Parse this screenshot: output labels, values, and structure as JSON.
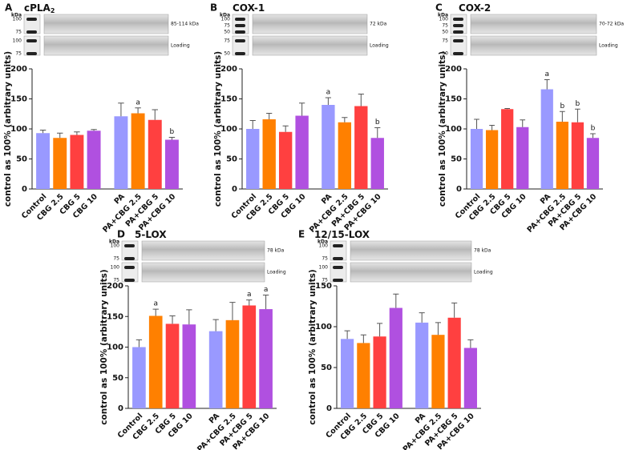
{
  "chart_data": [
    {
      "type": "bar",
      "panel": "A",
      "title": "cPLA",
      "title_subscript": "2",
      "blot": {
        "kda": "kDa",
        "ladder_top": [
          "100",
          "75"
        ],
        "ladder_bottom": [
          "100",
          "75"
        ],
        "band_label": "85-114 kDa",
        "loading_label": "Loading"
      },
      "y_label": "control as 100% (arbitrary units)",
      "categories": [
        "Control",
        "CBG 2.5",
        "CBG 5",
        "CBG 10",
        "PA",
        "PA+CBG 2.5",
        "PA+CBG 5",
        "PA+CBG 10"
      ],
      "colors": [
        "#9999ff",
        "#ff8000",
        "#ff4040",
        "#b050e0",
        "#9999ff",
        "#ff8000",
        "#ff4040",
        "#b050e0"
      ],
      "values": [
        93,
        85,
        90,
        97,
        121,
        126,
        115,
        82
      ],
      "errors": [
        5,
        8,
        5,
        2,
        22,
        9,
        17,
        4
      ],
      "annotations": [
        null,
        null,
        null,
        null,
        null,
        "a",
        null,
        "b"
      ],
      "ylim": [
        0,
        200
      ],
      "yticks": [
        0,
        50,
        100,
        150,
        200
      ]
    },
    {
      "type": "bar",
      "panel": "B",
      "title": "COX-1",
      "blot": {
        "kda": "kDa",
        "ladder_top": [
          "100",
          "75",
          "50"
        ],
        "ladder_bottom": [
          "75",
          "50"
        ],
        "band_label": "72 kDa",
        "loading_label": "Loading"
      },
      "y_label": "control as 100% (arbitrary units)",
      "categories": [
        "Control",
        "CBG 2.5",
        "CBG 5",
        "CBG 10",
        "PA",
        "PA+CBG 2.5",
        "PA+CBG 5",
        "PA+CBG 10"
      ],
      "colors": [
        "#9999ff",
        "#ff8000",
        "#ff4040",
        "#b050e0",
        "#9999ff",
        "#ff8000",
        "#ff4040",
        "#b050e0"
      ],
      "values": [
        100,
        116,
        95,
        122,
        140,
        111,
        138,
        85
      ],
      "errors": [
        14,
        10,
        10,
        21,
        12,
        8,
        20,
        17
      ],
      "annotations": [
        null,
        null,
        null,
        null,
        "a",
        null,
        null,
        "b"
      ],
      "ylim": [
        0,
        200
      ],
      "yticks": [
        0,
        50,
        100,
        150,
        200
      ]
    },
    {
      "type": "bar",
      "panel": "C",
      "title": "COX-2",
      "blot": {
        "kda": "kDa",
        "ladder_top": [
          "100",
          "75",
          "50"
        ],
        "ladder_bottom": [
          "75",
          "50"
        ],
        "band_label": "70-72 kDa",
        "loading_label": "Loading"
      },
      "y_label": "control as 100% (arbitrary units)",
      "categories": [
        "Control",
        "CBG 2.5",
        "CBG 5",
        "CBG 10",
        "PA",
        "PA+CBG 2.5",
        "PA+CBG 5",
        "PA+CBG 10"
      ],
      "colors": [
        "#9999ff",
        "#ff8000",
        "#ff4040",
        "#b050e0",
        "#9999ff",
        "#ff8000",
        "#ff4040",
        "#b050e0"
      ],
      "values": [
        100,
        98,
        133,
        103,
        166,
        112,
        111,
        85
      ],
      "errors": [
        16,
        8,
        1,
        12,
        16,
        17,
        22,
        7
      ],
      "annotations": [
        null,
        null,
        null,
        null,
        "a",
        "b",
        "b",
        "b"
      ],
      "ylim": [
        0,
        200
      ],
      "yticks": [
        0,
        50,
        100,
        150,
        200
      ]
    },
    {
      "type": "bar",
      "panel": "D",
      "title": "5-LOX",
      "blot": {
        "kda": "kDa",
        "ladder_top": [
          "100",
          "75"
        ],
        "ladder_bottom": [
          "100",
          "75"
        ],
        "band_label": "78 kDa",
        "loading_label": "Loading"
      },
      "y_label": "control as 100% (arbitrary units)",
      "categories": [
        "Control",
        "CBG 2.5",
        "CBG 5",
        "CBG 10",
        "PA",
        "PA+CBG 2.5",
        "PA+CBG 5",
        "PA+CBG 10"
      ],
      "colors": [
        "#9999ff",
        "#ff8000",
        "#ff4040",
        "#b050e0",
        "#9999ff",
        "#ff8000",
        "#ff4040",
        "#b050e0"
      ],
      "values": [
        100,
        151,
        138,
        137,
        126,
        144,
        168,
        162
      ],
      "errors": [
        12,
        11,
        13,
        24,
        19,
        29,
        9,
        23
      ],
      "annotations": [
        null,
        "a",
        null,
        null,
        null,
        null,
        "a",
        "a"
      ],
      "ylim": [
        0,
        200
      ],
      "yticks": [
        0,
        50,
        100,
        150,
        200
      ]
    },
    {
      "type": "bar",
      "panel": "E",
      "title": "12/15-LOX",
      "blot": {
        "kda": "kDa",
        "ladder_top": [
          "100",
          "75"
        ],
        "ladder_bottom": [
          "100",
          "75"
        ],
        "band_label": "78 kDa",
        "loading_label": "Loading"
      },
      "y_label": "control as 100% (arbitrary units)",
      "categories": [
        "Control",
        "CBG 2.5",
        "CBG 5",
        "CBG 10",
        "PA",
        "PA+CBG 2.5",
        "PA+CBG 5",
        "PA+CBG 10"
      ],
      "colors": [
        "#9999ff",
        "#ff8000",
        "#ff4040",
        "#b050e0",
        "#9999ff",
        "#ff8000",
        "#ff4040",
        "#b050e0"
      ],
      "values": [
        85,
        80,
        88,
        123,
        105,
        90,
        111,
        74
      ],
      "errors": [
        10,
        10,
        16,
        17,
        12,
        15,
        18,
        10
      ],
      "annotations": [
        null,
        null,
        null,
        null,
        null,
        null,
        null,
        null
      ],
      "ylim": [
        0,
        150
      ],
      "yticks": [
        0,
        50,
        100,
        150
      ]
    }
  ]
}
